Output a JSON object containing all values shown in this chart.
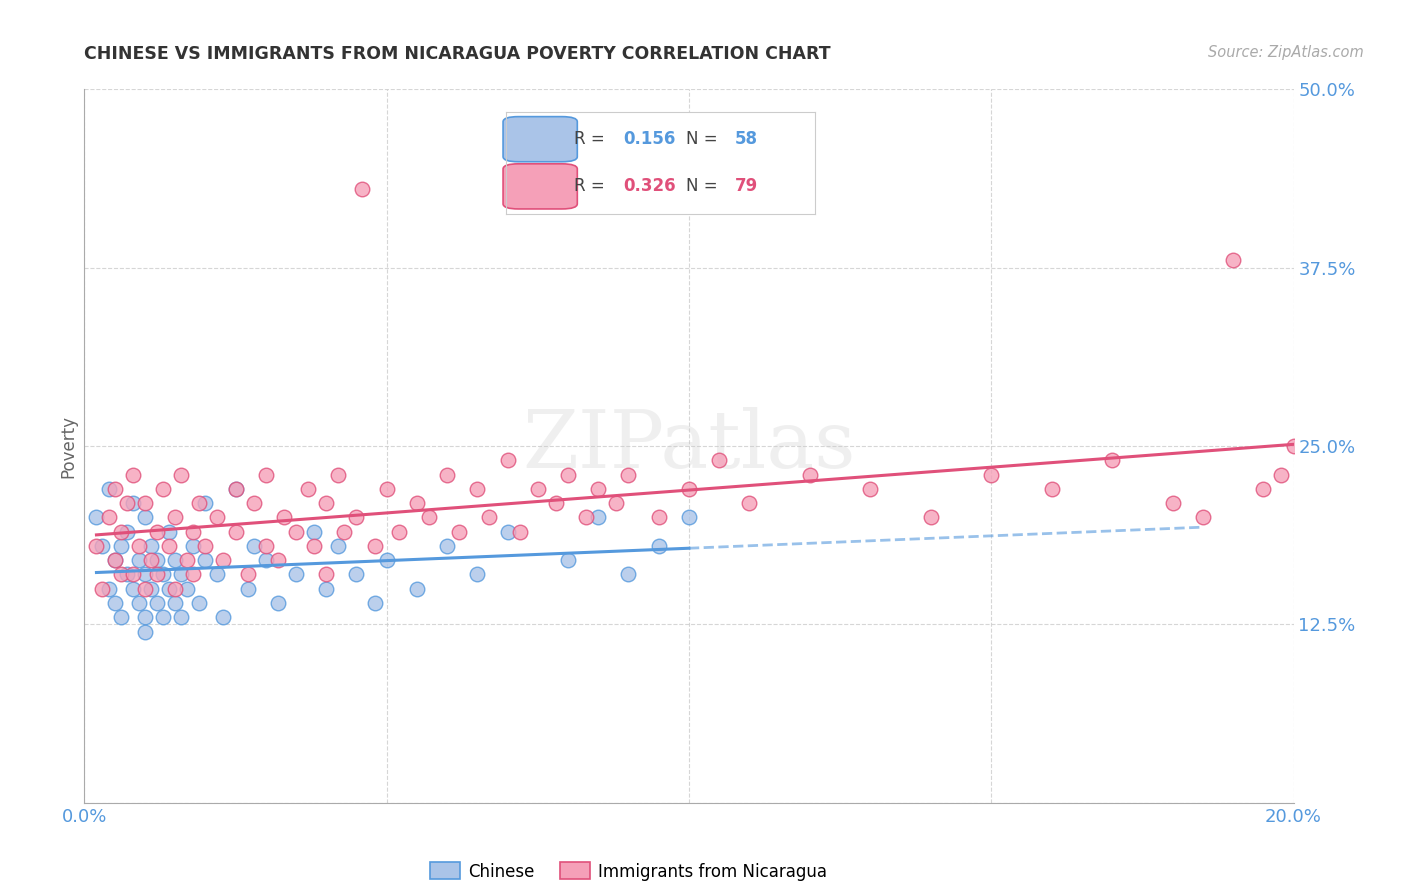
{
  "title": "CHINESE VS IMMIGRANTS FROM NICARAGUA POVERTY CORRELATION CHART",
  "source": "Source: ZipAtlas.com",
  "ylabel": "Poverty",
  "xlim": [
    0.0,
    0.2
  ],
  "ylim": [
    0.0,
    0.5
  ],
  "yticks": [
    0.0,
    0.125,
    0.25,
    0.375,
    0.5
  ],
  "ytick_labels": [
    "",
    "12.5%",
    "25.0%",
    "37.5%",
    "50.0%"
  ],
  "xticks": [
    0.0,
    0.05,
    0.1,
    0.15,
    0.2
  ],
  "xtick_labels": [
    "0.0%",
    "",
    "",
    "",
    "20.0%"
  ],
  "blue_fill": "#aac4e8",
  "blue_edge": "#5599dd",
  "pink_fill": "#f5a0b8",
  "pink_edge": "#e0507a",
  "blue_line_color": "#5599dd",
  "pink_line_color": "#e0507a",
  "tick_label_color": "#5599dd",
  "title_color": "#333333",
  "watermark": "ZIPatlas",
  "legend_R_blue": "0.156",
  "legend_N_blue": "58",
  "legend_R_pink": "0.326",
  "legend_N_pink": "79",
  "blue_scatter_x": [
    0.002,
    0.003,
    0.004,
    0.004,
    0.005,
    0.005,
    0.006,
    0.006,
    0.007,
    0.007,
    0.008,
    0.008,
    0.009,
    0.009,
    0.01,
    0.01,
    0.01,
    0.01,
    0.011,
    0.011,
    0.012,
    0.012,
    0.013,
    0.013,
    0.014,
    0.014,
    0.015,
    0.015,
    0.016,
    0.016,
    0.017,
    0.018,
    0.019,
    0.02,
    0.02,
    0.022,
    0.023,
    0.025,
    0.027,
    0.028,
    0.03,
    0.032,
    0.035,
    0.038,
    0.04,
    0.042,
    0.045,
    0.048,
    0.05,
    0.055,
    0.06,
    0.065,
    0.07,
    0.08,
    0.085,
    0.09,
    0.095,
    0.1
  ],
  "blue_scatter_y": [
    0.2,
    0.18,
    0.22,
    0.15,
    0.17,
    0.14,
    0.18,
    0.13,
    0.16,
    0.19,
    0.15,
    0.21,
    0.14,
    0.17,
    0.13,
    0.16,
    0.2,
    0.12,
    0.15,
    0.18,
    0.14,
    0.17,
    0.13,
    0.16,
    0.15,
    0.19,
    0.14,
    0.17,
    0.16,
    0.13,
    0.15,
    0.18,
    0.14,
    0.17,
    0.21,
    0.16,
    0.13,
    0.22,
    0.15,
    0.18,
    0.17,
    0.14,
    0.16,
    0.19,
    0.15,
    0.18,
    0.16,
    0.14,
    0.17,
    0.15,
    0.18,
    0.16,
    0.19,
    0.17,
    0.2,
    0.16,
    0.18,
    0.2
  ],
  "pink_scatter_x": [
    0.002,
    0.003,
    0.004,
    0.005,
    0.005,
    0.006,
    0.006,
    0.007,
    0.008,
    0.008,
    0.009,
    0.01,
    0.01,
    0.011,
    0.012,
    0.012,
    0.013,
    0.014,
    0.015,
    0.015,
    0.016,
    0.017,
    0.018,
    0.018,
    0.019,
    0.02,
    0.022,
    0.023,
    0.025,
    0.025,
    0.027,
    0.028,
    0.03,
    0.03,
    0.032,
    0.033,
    0.035,
    0.037,
    0.038,
    0.04,
    0.04,
    0.042,
    0.043,
    0.045,
    0.046,
    0.048,
    0.05,
    0.052,
    0.055,
    0.057,
    0.06,
    0.062,
    0.065,
    0.067,
    0.07,
    0.072,
    0.075,
    0.078,
    0.08,
    0.083,
    0.085,
    0.088,
    0.09,
    0.095,
    0.1,
    0.105,
    0.11,
    0.12,
    0.13,
    0.14,
    0.15,
    0.16,
    0.17,
    0.18,
    0.185,
    0.19,
    0.195,
    0.198,
    0.2
  ],
  "pink_scatter_y": [
    0.18,
    0.15,
    0.2,
    0.17,
    0.22,
    0.16,
    0.19,
    0.21,
    0.16,
    0.23,
    0.18,
    0.15,
    0.21,
    0.17,
    0.19,
    0.16,
    0.22,
    0.18,
    0.2,
    0.15,
    0.23,
    0.17,
    0.19,
    0.16,
    0.21,
    0.18,
    0.2,
    0.17,
    0.22,
    0.19,
    0.16,
    0.21,
    0.18,
    0.23,
    0.17,
    0.2,
    0.19,
    0.22,
    0.18,
    0.21,
    0.16,
    0.23,
    0.19,
    0.2,
    0.43,
    0.18,
    0.22,
    0.19,
    0.21,
    0.2,
    0.23,
    0.19,
    0.22,
    0.2,
    0.24,
    0.19,
    0.22,
    0.21,
    0.23,
    0.2,
    0.22,
    0.21,
    0.23,
    0.2,
    0.22,
    0.24,
    0.21,
    0.23,
    0.22,
    0.2,
    0.23,
    0.22,
    0.24,
    0.21,
    0.2,
    0.38,
    0.22,
    0.23,
    0.25
  ]
}
